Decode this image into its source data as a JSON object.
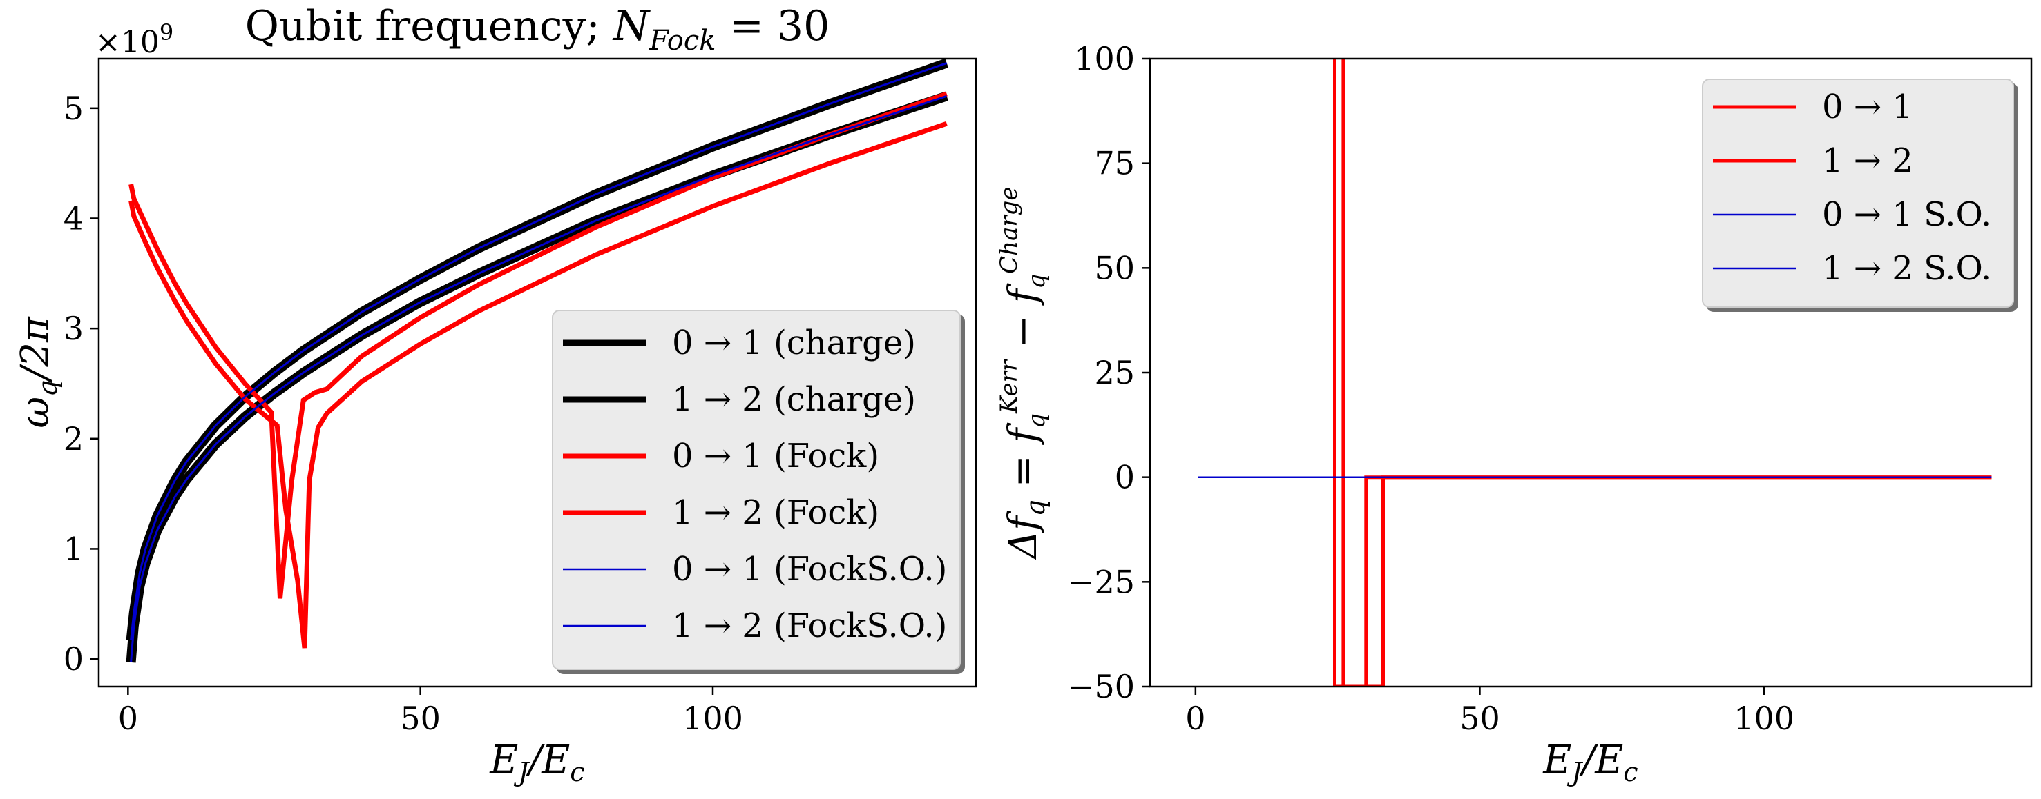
{
  "chart_data": [
    {
      "type": "line",
      "title": "Qubit frequency; N_Fock = 30",
      "title_parts": {
        "main": "Qubit frequency; ",
        "var": "N",
        "sub": "Fock",
        "eq": " = 30"
      },
      "xlabel": "E_J/E_c",
      "ylabel": "ω_q/2π",
      "y_multiplier": "×10^9",
      "xlim": [
        -5,
        145
      ],
      "ylim": [
        -0.25,
        5.45
      ],
      "xticks": [
        0,
        50,
        100
      ],
      "yticks": [
        0,
        1,
        2,
        3,
        4,
        5
      ],
      "grid": false,
      "legend_placement": "lower right",
      "series": [
        {
          "name": "0 → 1 (charge)",
          "color": "#000000",
          "x": [
            0.5,
            1,
            2,
            3,
            5,
            8,
            10,
            15,
            20,
            25,
            30,
            40,
            50,
            60,
            80,
            100,
            120,
            140
          ],
          "values": [
            0.17,
            0.42,
            0.78,
            1.0,
            1.3,
            1.62,
            1.79,
            2.12,
            2.38,
            2.6,
            2.8,
            3.15,
            3.45,
            3.73,
            4.22,
            4.65,
            5.04,
            5.41
          ]
        },
        {
          "name": "1 → 2 (charge)",
          "color": "#000000",
          "x": [
            0.5,
            1,
            2,
            3,
            5,
            8,
            10,
            15,
            20,
            25,
            30,
            40,
            50,
            60,
            80,
            100,
            120,
            140
          ],
          "values": [
            -0.03,
            0.3,
            0.66,
            0.87,
            1.17,
            1.47,
            1.63,
            1.95,
            2.2,
            2.41,
            2.6,
            2.94,
            3.24,
            3.5,
            3.98,
            4.39,
            4.76,
            5.11
          ]
        },
        {
          "name": "0 → 1 (Fock)",
          "color": "#ff0000",
          "x": [
            0.5,
            1,
            3,
            5,
            8,
            10,
            15,
            20,
            24.5,
            26,
            28,
            30,
            32,
            34,
            40,
            50,
            60,
            80,
            100,
            120,
            140
          ],
          "values": [
            4.31,
            4.18,
            3.95,
            3.72,
            3.41,
            3.23,
            2.83,
            2.5,
            2.24,
            0.55,
            1.62,
            2.35,
            2.42,
            2.45,
            2.75,
            3.1,
            3.4,
            3.92,
            4.37,
            4.76,
            5.13
          ]
        },
        {
          "name": "1 → 2 (Fock)",
          "color": "#ff0000",
          "x": [
            0.5,
            1,
            3,
            5,
            8,
            10,
            15,
            20,
            25.5,
            27,
            29,
            30.2,
            31,
            32.5,
            34,
            40,
            50,
            60,
            80,
            100,
            120,
            140
          ],
          "values": [
            4.16,
            4.02,
            3.78,
            3.55,
            3.25,
            3.07,
            2.68,
            2.36,
            2.12,
            1.35,
            0.71,
            0.1,
            1.62,
            2.1,
            2.23,
            2.52,
            2.86,
            3.16,
            3.67,
            4.11,
            4.5,
            4.86
          ]
        },
        {
          "name": "0 → 1 (FockS.O.)",
          "color": "#0000cc",
          "x": [
            0.5,
            1,
            2,
            3,
            5,
            8,
            10,
            15,
            20,
            25,
            30,
            40,
            50,
            60,
            80,
            100,
            120,
            140
          ],
          "values": [
            0.17,
            0.42,
            0.78,
            1.0,
            1.3,
            1.62,
            1.79,
            2.12,
            2.38,
            2.6,
            2.8,
            3.15,
            3.45,
            3.73,
            4.22,
            4.65,
            5.04,
            5.41
          ]
        },
        {
          "name": "1 → 2 (FockS.O.)",
          "color": "#0000cc",
          "x": [
            0.5,
            1,
            2,
            3,
            5,
            8,
            10,
            15,
            20,
            25,
            30,
            40,
            50,
            60,
            80,
            100,
            120,
            140
          ],
          "values": [
            -0.03,
            0.3,
            0.66,
            0.87,
            1.17,
            1.47,
            1.63,
            1.95,
            2.2,
            2.41,
            2.6,
            2.94,
            3.24,
            3.5,
            3.98,
            4.39,
            4.76,
            5.11
          ]
        }
      ]
    },
    {
      "type": "line",
      "title": "",
      "xlabel": "E_J/E_c",
      "ylabel": "Δf_q = f_q^Kerr − f_q^Charge",
      "xlim": [
        -8,
        147
      ],
      "ylim": [
        -50,
        100
      ],
      "xticks": [
        0,
        50,
        100
      ],
      "yticks": [
        -50,
        -25,
        0,
        25,
        50,
        75,
        100
      ],
      "grid": false,
      "legend_placement": "upper right",
      "series": [
        {
          "name": "0 → 1",
          "color": "#ff0000",
          "x": [
            24.5,
            24.5,
            24.5,
            30,
            30,
            140
          ],
          "values": [
            -50,
            100,
            -50,
            -50,
            0,
            0
          ]
        },
        {
          "name": "1 → 2",
          "color": "#ff0000",
          "x": [
            26,
            26,
            26,
            33,
            33,
            140
          ],
          "values": [
            -50,
            100,
            -50,
            -50,
            0,
            0
          ]
        },
        {
          "name": "0 → 1 S.O.",
          "color": "#0000cc",
          "x": [
            0.5,
            140
          ],
          "values": [
            0,
            0
          ]
        },
        {
          "name": "1 → 2 S.O.",
          "color": "#0000cc",
          "x": [
            0.5,
            140
          ],
          "values": [
            0,
            0
          ]
        }
      ]
    }
  ]
}
